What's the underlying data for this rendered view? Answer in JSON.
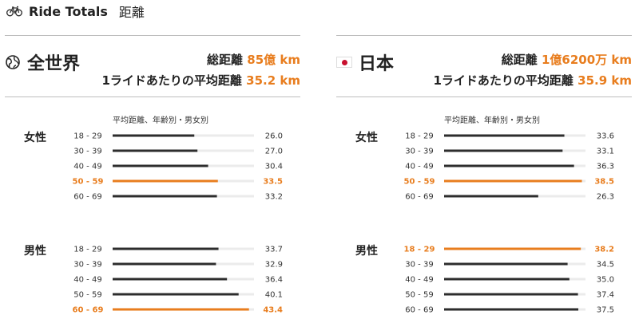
{
  "header": {
    "title": "Ride Totals",
    "subtitle": "距離",
    "icon": "bicycle-icon"
  },
  "colors": {
    "accent": "#e87d1e",
    "bar": "#2d2d2d",
    "track": "#ebebeb"
  },
  "panels": [
    {
      "region": "全世界",
      "icon": "globe-icon",
      "stat1_label": "総距離",
      "stat1_value": "85億 km",
      "stat2_label": "1ライドあたりの平均距離",
      "stat2_value": "35.2 km",
      "chart_title": "平均距離、年齢別・男女別",
      "groups": [
        {
          "label": "女性",
          "rows": [
            {
              "age": "18 - 29",
              "value": "26.0"
            },
            {
              "age": "30 - 39",
              "value": "27.0"
            },
            {
              "age": "40 - 49",
              "value": "30.4"
            },
            {
              "age": "50 - 59",
              "value": "33.5"
            },
            {
              "age": "60 - 69",
              "value": "33.2"
            }
          ]
        },
        {
          "label": "男性",
          "rows": [
            {
              "age": "18 - 29",
              "value": "33.7"
            },
            {
              "age": "30 - 39",
              "value": "32.9"
            },
            {
              "age": "40 - 49",
              "value": "36.4"
            },
            {
              "age": "50 - 59",
              "value": "40.1"
            },
            {
              "age": "60 - 69",
              "value": "43.4"
            }
          ]
        }
      ]
    },
    {
      "region": "日本",
      "icon": "japan-flag-icon",
      "stat1_label": "総距離",
      "stat1_value": "1億6200万 km",
      "stat2_label": "1ライドあたりの平均距離",
      "stat2_value": "35.9 km",
      "chart_title": "平均距離、年齢別・男女別",
      "groups": [
        {
          "label": "女性",
          "rows": [
            {
              "age": "18 - 29",
              "value": "33.6"
            },
            {
              "age": "30 - 39",
              "value": "33.1"
            },
            {
              "age": "40 - 49",
              "value": "36.3"
            },
            {
              "age": "50 - 59",
              "value": "38.5"
            },
            {
              "age": "60 - 69",
              "value": "26.3"
            }
          ]
        },
        {
          "label": "男性",
          "rows": [
            {
              "age": "18 - 29",
              "value": "38.2"
            },
            {
              "age": "30 - 39",
              "value": "34.5"
            },
            {
              "age": "40 - 49",
              "value": "35.0"
            },
            {
              "age": "50 - 59",
              "value": "37.4"
            },
            {
              "age": "60 - 69",
              "value": "37.5"
            }
          ]
        }
      ]
    }
  ],
  "chart_data": [
    {
      "type": "bar",
      "title": "平均距離、年齢別・男女別",
      "categories": [
        "18 - 29",
        "30 - 39",
        "40 - 49",
        "50 - 59",
        "60 - 69"
      ],
      "series": [
        {
          "name": "女性",
          "values": [
            26.0,
            27.0,
            30.4,
            33.5,
            33.2
          ],
          "highlight_index": 3
        },
        {
          "name": "男性",
          "values": [
            33.7,
            32.9,
            36.4,
            40.1,
            43.4
          ],
          "highlight_index": 4
        }
      ],
      "xlim": [
        0,
        45
      ],
      "orientation": "horizontal"
    },
    {
      "type": "bar",
      "title": "平均距離、年齢別・男女別",
      "categories": [
        "18 - 29",
        "30 - 39",
        "40 - 49",
        "50 - 59",
        "60 - 69"
      ],
      "series": [
        {
          "name": "女性",
          "values": [
            33.6,
            33.1,
            36.3,
            38.5,
            26.3
          ],
          "highlight_index": 3
        },
        {
          "name": "男性",
          "values": [
            38.2,
            34.5,
            35.0,
            37.4,
            37.5
          ],
          "highlight_index": 0
        }
      ],
      "xlim": [
        0,
        39.5
      ],
      "orientation": "horizontal"
    }
  ]
}
